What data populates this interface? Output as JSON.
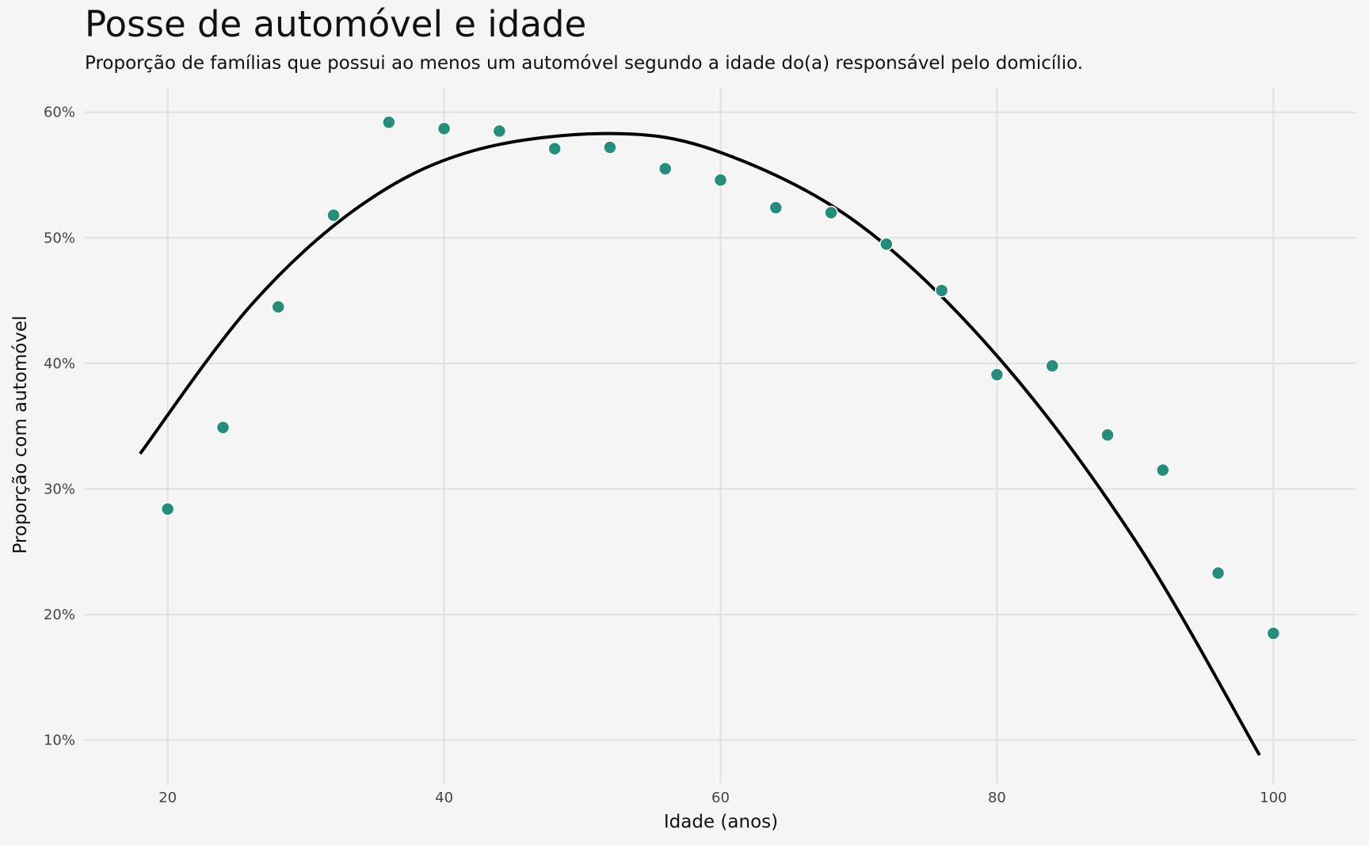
{
  "chart_data": {
    "type": "scatter",
    "title": "Posse de automóvel e idade",
    "subtitle": "Proporção de famílias que possui ao menos um automóvel segundo a idade do(a) responsável pelo domicílio.",
    "xlabel": "Idade (anos)",
    "ylabel": "Proporção com automóvel",
    "xlim": [
      14,
      106
    ],
    "ylim": [
      6.5,
      62
    ],
    "x_ticks": [
      20,
      40,
      60,
      80,
      100
    ],
    "x_tick_labels": [
      "20",
      "40",
      "60",
      "80",
      "100"
    ],
    "y_ticks": [
      10,
      20,
      30,
      40,
      50,
      60
    ],
    "y_tick_labels": [
      "10%",
      "20%",
      "30%",
      "40%",
      "50%",
      "60%"
    ],
    "grid": true,
    "legend": "none",
    "point_color": "#268c7c",
    "line_color": "#000000",
    "background_color": "#f5f5f5",
    "grid_color": "#e0e0e0",
    "points": {
      "x": [
        20,
        24,
        28,
        32,
        36,
        40,
        44,
        48,
        52,
        56,
        60,
        64,
        68,
        72,
        76,
        80,
        84,
        88,
        92,
        96,
        100
      ],
      "y": [
        28.4,
        34.9,
        44.5,
        51.8,
        59.2,
        58.7,
        58.5,
        57.1,
        57.2,
        55.5,
        54.6,
        52.4,
        52.0,
        49.5,
        45.8,
        39.1,
        39.8,
        34.3,
        31.5,
        23.3,
        18.5
      ]
    },
    "trend_line": {
      "x": [
        18,
        26,
        34,
        42,
        52,
        60,
        70,
        80,
        90,
        99
      ],
      "y": [
        32.8,
        44.6,
        52.6,
        56.9,
        58.3,
        56.8,
        51.1,
        40.6,
        25.9,
        8.8
      ]
    }
  }
}
